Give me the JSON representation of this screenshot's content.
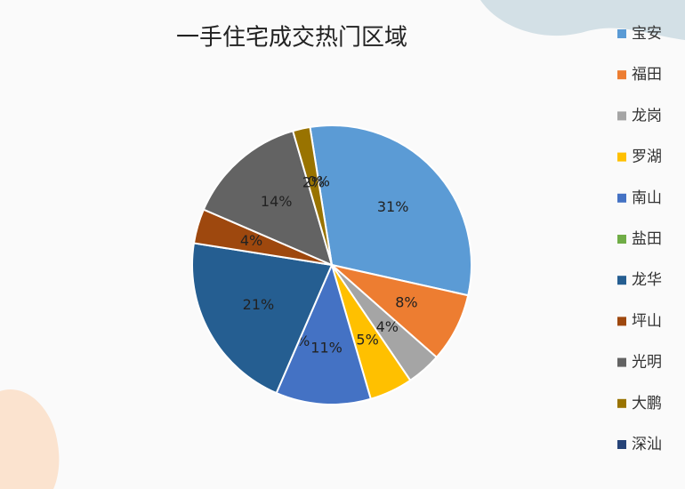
{
  "chart_data": {
    "type": "pie",
    "title": "一手住宅成交热门区域",
    "categories": [
      "宝安",
      "福田",
      "龙岗",
      "罗湖",
      "南山",
      "盐田",
      "龙华",
      "坪山",
      "光明",
      "大鹏",
      "深汕"
    ],
    "values": [
      31,
      8,
      4,
      5,
      11,
      0,
      21,
      4,
      14,
      2,
      0
    ],
    "value_labels": [
      "31%",
      "8%",
      "4%",
      "5%",
      "11%",
      "0%",
      "21%",
      "4%",
      "14%",
      "2%",
      "0%"
    ],
    "colors": [
      "#5b9bd5",
      "#ed7d31",
      "#a5a5a5",
      "#ffc000",
      "#4472c4",
      "#70ad47",
      "#255e91",
      "#9e480e",
      "#636363",
      "#997300",
      "#264478"
    ],
    "legend": "right"
  }
}
